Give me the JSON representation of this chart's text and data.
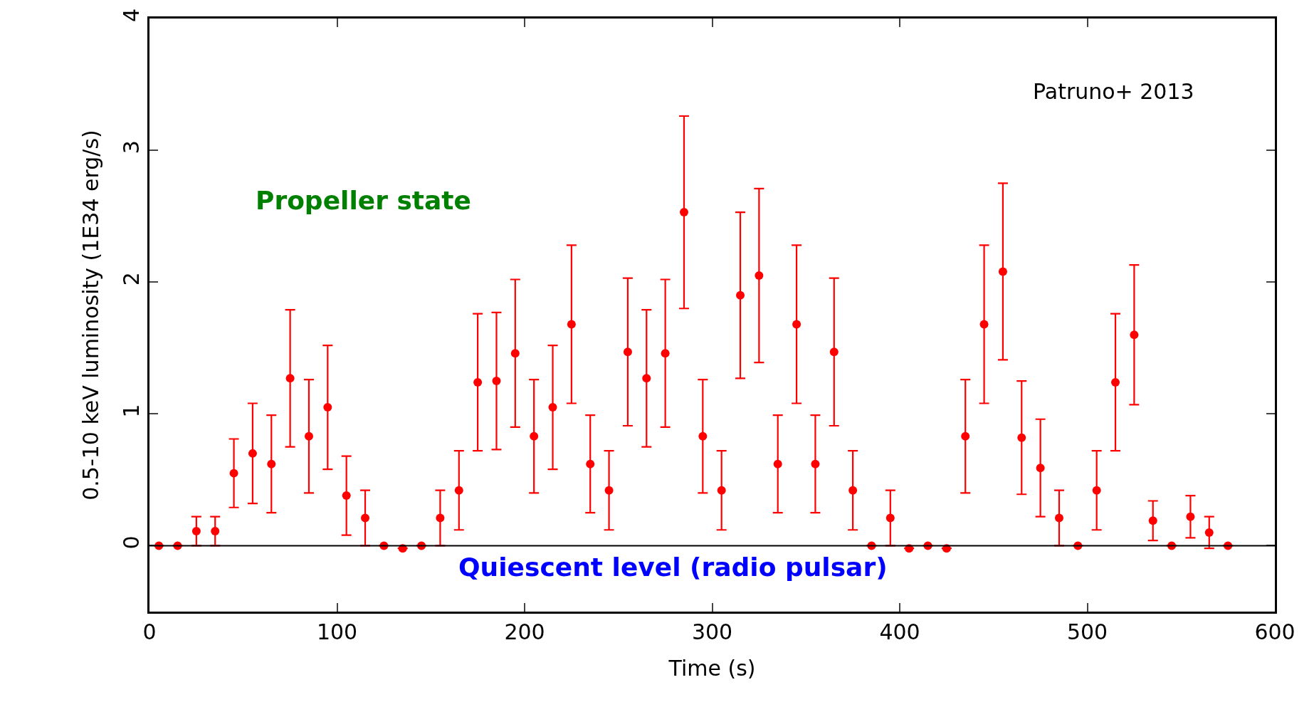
{
  "chart_data": {
    "type": "scatter",
    "xlabel": "Time (s)",
    "ylabel": "0.5-10 keV luminosity (1E34 erg/s)",
    "annotations": [
      "Patruno+ 2013",
      "Propeller state"
    ],
    "x": [
      5,
      15,
      25,
      35,
      45,
      55,
      65,
      75,
      85,
      95,
      105,
      115,
      125,
      135,
      145,
      155,
      165,
      175,
      185,
      195,
      205,
      215,
      225,
      235,
      245,
      255,
      265,
      275,
      285,
      295,
      305,
      315,
      325,
      335,
      345,
      355,
      365,
      375,
      385,
      395,
      405,
      415,
      425,
      435,
      445,
      455,
      465,
      475,
      485,
      495,
      505,
      515,
      525,
      535,
      545,
      555,
      565,
      575
    ],
    "series": [
      {
        "color": "#ff0000",
        "values": [
          0,
          0,
          0.11,
          0.11,
          0.55,
          0.7,
          0.62,
          1.27,
          0.83,
          1.05,
          0.38,
          0.21,
          0,
          -0.02,
          0,
          0.21,
          0.42,
          1.24,
          1.25,
          1.46,
          0.83,
          1.05,
          1.68,
          0.62,
          0.42,
          1.47,
          1.27,
          1.46,
          2.53,
          0.83,
          0.42,
          1.9,
          2.05,
          0.62,
          1.68,
          0.62,
          1.47,
          0.42,
          0,
          0.21,
          -0.02,
          0,
          -0.02,
          0.83,
          1.68,
          2.08,
          0.82,
          0.59,
          0.21,
          0,
          0.42,
          1.24,
          1.6,
          0.19,
          0,
          0.22,
          0.1,
          0
        ],
        "errors": [
          null,
          null,
          0.11,
          0.11,
          0.26,
          0.38,
          0.37,
          0.52,
          0.43,
          0.47,
          0.3,
          0.21,
          null,
          null,
          null,
          0.21,
          0.3,
          0.52,
          0.52,
          0.56,
          0.43,
          0.47,
          0.6,
          0.37,
          0.3,
          0.56,
          0.52,
          0.56,
          0.73,
          0.43,
          0.3,
          0.63,
          0.66,
          0.37,
          0.6,
          0.37,
          0.56,
          0.3,
          null,
          0.21,
          null,
          null,
          null,
          0.43,
          0.6,
          0.67,
          0.43,
          0.37,
          0.21,
          null,
          0.3,
          0.52,
          0.53,
          0.15,
          null,
          0.16,
          0.12,
          null
        ]
      }
    ],
    "marker": "circle",
    "xlim": [
      0,
      600
    ],
    "xticks": [
      0,
      100,
      200,
      300,
      400,
      500,
      600
    ],
    "ylim": [
      -0.5,
      4
    ],
    "yticks": [
      0,
      1,
      2,
      3,
      4
    ],
    "ref_lines": [
      {
        "axis": "y",
        "value": 0,
        "label": "Quiescent level (radio pulsar)",
        "color": "#000000"
      }
    ]
  }
}
